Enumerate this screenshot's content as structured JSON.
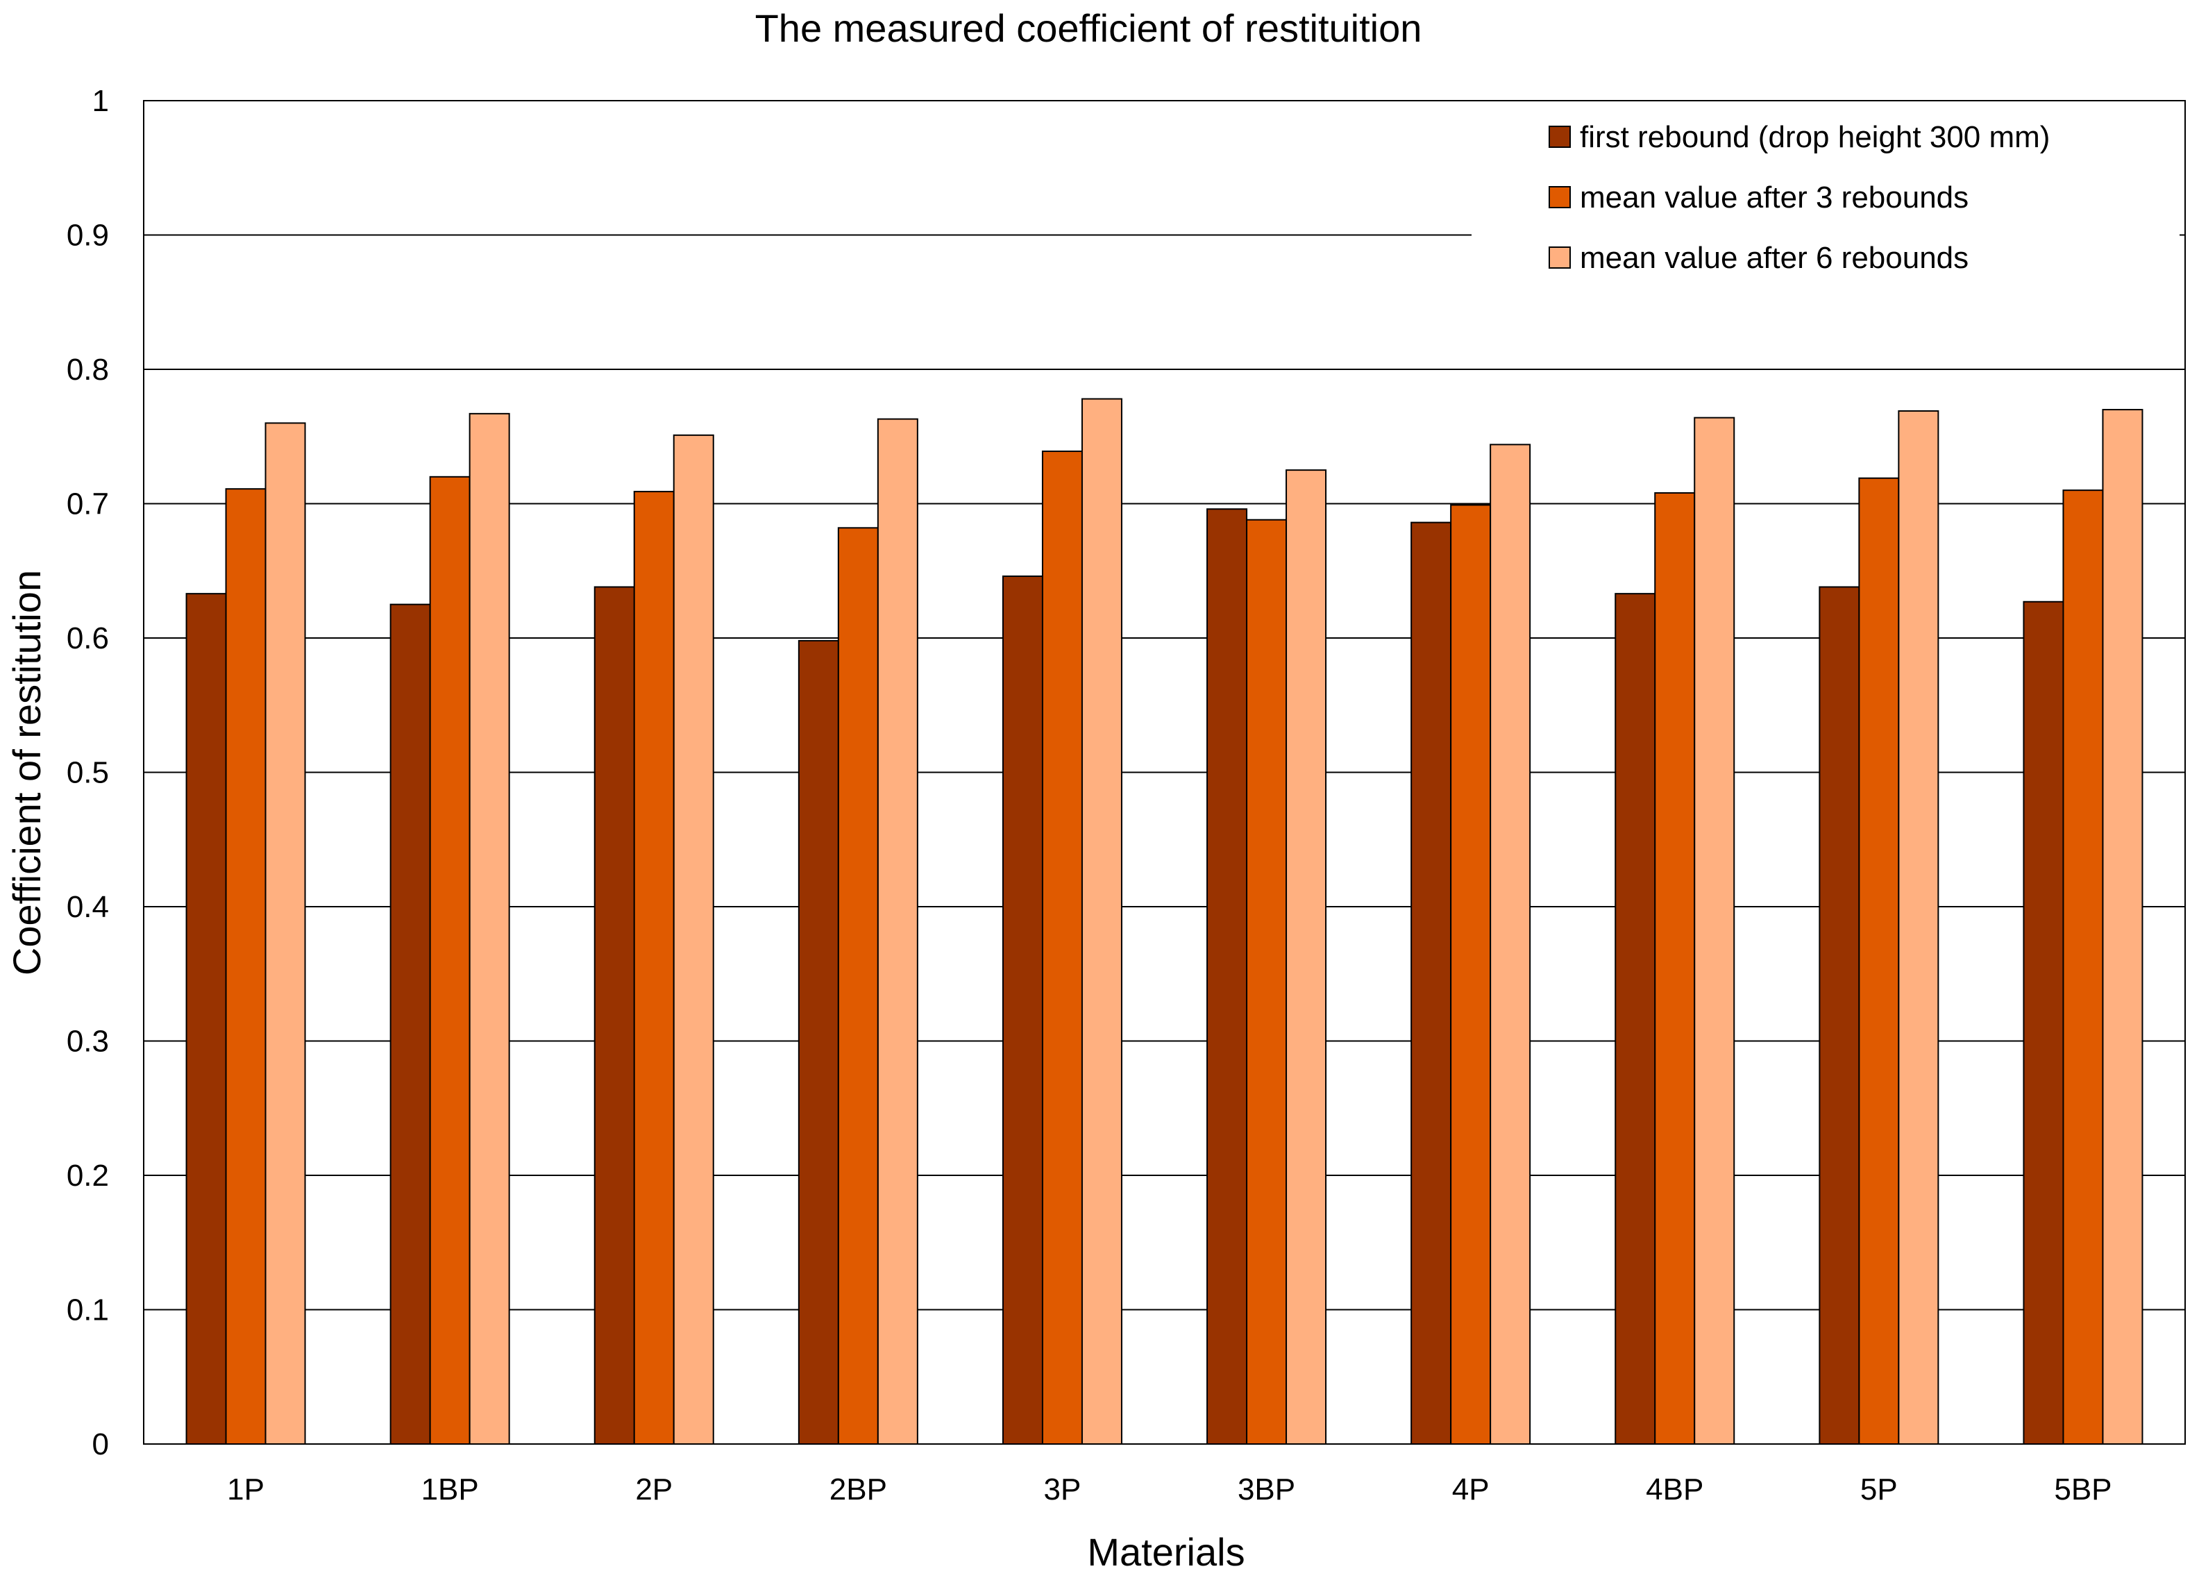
{
  "chart_data": {
    "type": "bar",
    "title": "The measured coefficient of restituition",
    "xlabel": "Materials",
    "ylabel": "Coefficient of restitution",
    "ylim": [
      0,
      1
    ],
    "yticks": [
      "0",
      "0.1",
      "0.2",
      "0.3",
      "0.4",
      "0.5",
      "0.6",
      "0.7",
      "0.8",
      "0.9",
      "1"
    ],
    "grid": true,
    "legend_position": "top-right",
    "categories": [
      "1P",
      "1BP",
      "2P",
      "2BP",
      "3P",
      "3BP",
      "4P",
      "4BP",
      "5P",
      "5BP"
    ],
    "series": [
      {
        "name": "first rebound (drop height 300 mm)",
        "color": "#993300",
        "values": [
          0.633,
          0.625,
          0.638,
          0.598,
          0.646,
          0.696,
          0.686,
          0.633,
          0.638,
          0.627
        ]
      },
      {
        "name": "mean value after 3 rebounds",
        "color": "#e05a00",
        "values": [
          0.711,
          0.72,
          0.709,
          0.682,
          0.739,
          0.688,
          0.699,
          0.708,
          0.719,
          0.71
        ]
      },
      {
        "name": "mean value after 6 rebounds",
        "color": "#ffb080",
        "values": [
          0.76,
          0.767,
          0.751,
          0.763,
          0.778,
          0.725,
          0.744,
          0.764,
          0.769,
          0.77
        ]
      }
    ]
  }
}
